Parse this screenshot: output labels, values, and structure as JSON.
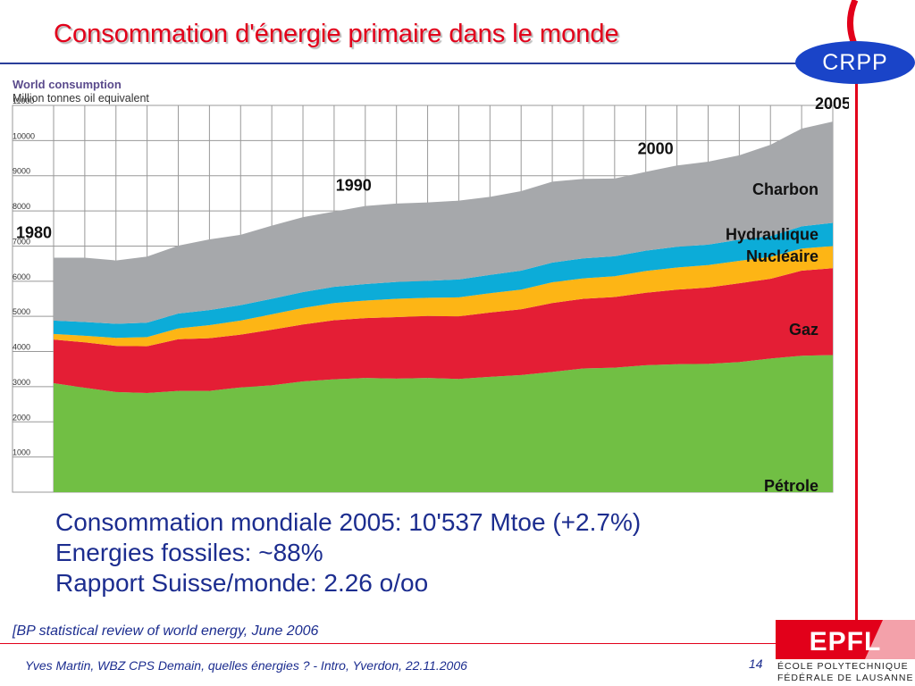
{
  "slide": {
    "title": "Consommation d'énergie primaire dans le monde",
    "logo_text": "CRPP",
    "summary_lines": [
      "Consommation mondiale 2005: 10'537 Mtoe (+2.7%)",
      "Energies fossiles: ~88%",
      "Rapport Suisse/monde: 2.26 o/oo"
    ],
    "source": "[BP statistical review  of world energy, June 2006",
    "footer": "Yves Martin, WBZ CPS Demain, quelles énergies ? - Intro, Yverdon, 22.11.2006",
    "page_number": "14",
    "epfl_logo": "EPFL",
    "epfl_text": [
      "ÉCOLE POLYTECHNIQUE",
      "FÉDÉRALE DE LAUSANNE"
    ],
    "colors": {
      "title": "#e2001a",
      "text": "#1c2d8f",
      "logo": "#1a44c8"
    }
  },
  "chart_data": {
    "type": "area",
    "stacked": true,
    "title": "World consumption",
    "subtitle": "Million tonnes oil equivalent",
    "ylim": [
      0,
      11000
    ],
    "yticks": [
      1000,
      2000,
      3000,
      4000,
      5000,
      6000,
      7000,
      8000,
      9000,
      10000,
      11000
    ],
    "x": [
      1980,
      1981,
      1982,
      1983,
      1984,
      1985,
      1986,
      1987,
      1988,
      1989,
      1990,
      1991,
      1992,
      1993,
      1994,
      1995,
      1996,
      1997,
      1998,
      1999,
      2000,
      2001,
      2002,
      2003,
      2004,
      2005
    ],
    "year_labels": [
      "1980",
      "1990",
      "2000",
      "2005"
    ],
    "series": [
      {
        "name": "Pétrole",
        "color": "#71bf44",
        "values": [
          3100,
          2970,
          2850,
          2820,
          2880,
          2880,
          2980,
          3040,
          3150,
          3210,
          3250,
          3230,
          3250,
          3220,
          3280,
          3330,
          3420,
          3520,
          3540,
          3610,
          3640,
          3650,
          3700,
          3800,
          3880,
          3900
        ]
      },
      {
        "name": "Gaz",
        "color": "#e41e35",
        "values": [
          1240,
          1290,
          1310,
          1330,
          1470,
          1500,
          1500,
          1580,
          1620,
          1680,
          1700,
          1750,
          1760,
          1780,
          1830,
          1870,
          1960,
          1980,
          2010,
          2060,
          2120,
          2170,
          2240,
          2270,
          2420,
          2470
        ]
      },
      {
        "name": "Nucléaire",
        "color": "#fdb515",
        "values": [
          160,
          190,
          230,
          260,
          310,
          370,
          400,
          440,
          470,
          490,
          500,
          520,
          520,
          540,
          550,
          560,
          590,
          580,
          590,
          620,
          630,
          640,
          640,
          620,
          630,
          630
        ]
      },
      {
        "name": "Hydraulique",
        "color": "#0cacd8",
        "values": [
          380,
          390,
          400,
          410,
          420,
          430,
          440,
          440,
          450,
          460,
          470,
          480,
          480,
          510,
          520,
          540,
          560,
          570,
          570,
          580,
          590,
          580,
          600,
          590,
          630,
          660
        ]
      },
      {
        "name": "Charbon",
        "color": "#a6a8ab",
        "values": [
          1790,
          1830,
          1800,
          1880,
          1930,
          2010,
          2000,
          2080,
          2130,
          2140,
          2220,
          2230,
          2230,
          2240,
          2220,
          2260,
          2300,
          2260,
          2210,
          2240,
          2310,
          2360,
          2400,
          2600,
          2780,
          2880
        ]
      }
    ]
  }
}
